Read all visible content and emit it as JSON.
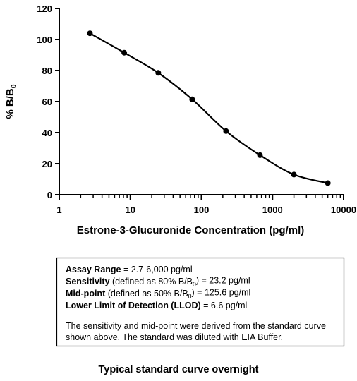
{
  "chart_data": {
    "type": "scatter",
    "x_label": "Estrone-3-Glucuronide Concentration (pg/ml)",
    "y_label": [
      {
        "text": "% B/B"
      },
      {
        "text": "0",
        "sub": true
      }
    ],
    "xscale": "log",
    "xlim": [
      1,
      10000
    ],
    "xticks": [
      1,
      10,
      100,
      1000,
      10000
    ],
    "xminorticks": [
      2,
      3,
      4,
      5,
      6,
      7,
      8,
      9,
      20,
      30,
      40,
      50,
      60,
      70,
      80,
      90,
      200,
      300,
      400,
      500,
      600,
      700,
      800,
      900,
      2000,
      3000,
      4000,
      5000,
      6000,
      7000,
      8000,
      9000
    ],
    "ylim": [
      0,
      120
    ],
    "yticks": [
      0,
      20,
      40,
      60,
      80,
      100,
      120
    ],
    "x": [
      2.7,
      8.2,
      24.7,
      74,
      222,
      667,
      2000,
      6000
    ],
    "values": [
      104,
      91.5,
      78.5,
      61.5,
      41,
      25.5,
      13,
      7.5
    ],
    "color": "#000000",
    "fit_line": true
  },
  "info_box": {
    "lines": [
      [
        {
          "text": "Assay Range",
          "bold": true
        },
        {
          "text": " = 2.7-6,000 pg/ml"
        }
      ],
      [
        {
          "text": "Sensitivity",
          "bold": true
        },
        {
          "text": " (defined as 80% B/B"
        },
        {
          "text": "0",
          "sub": true
        },
        {
          "text": ") =  23.2 pg/ml"
        }
      ],
      [
        {
          "text": "Mid-point",
          "bold": true
        },
        {
          "text": " (defined as 50% B/B"
        },
        {
          "text": "0",
          "sub": true
        },
        {
          "text": ") =  125.6 pg/ml"
        }
      ],
      [
        {
          "text": "Lower Limit of Detection (LLOD)",
          "bold": true
        },
        {
          "text": " =  6.6 pg/ml"
        }
      ]
    ],
    "note": [
      "The sensitivity and mid-point were derived from the standard curve",
      "shown above. The standard was diluted with EIA Buffer."
    ]
  },
  "caption": "Typical standard curve overnight"
}
